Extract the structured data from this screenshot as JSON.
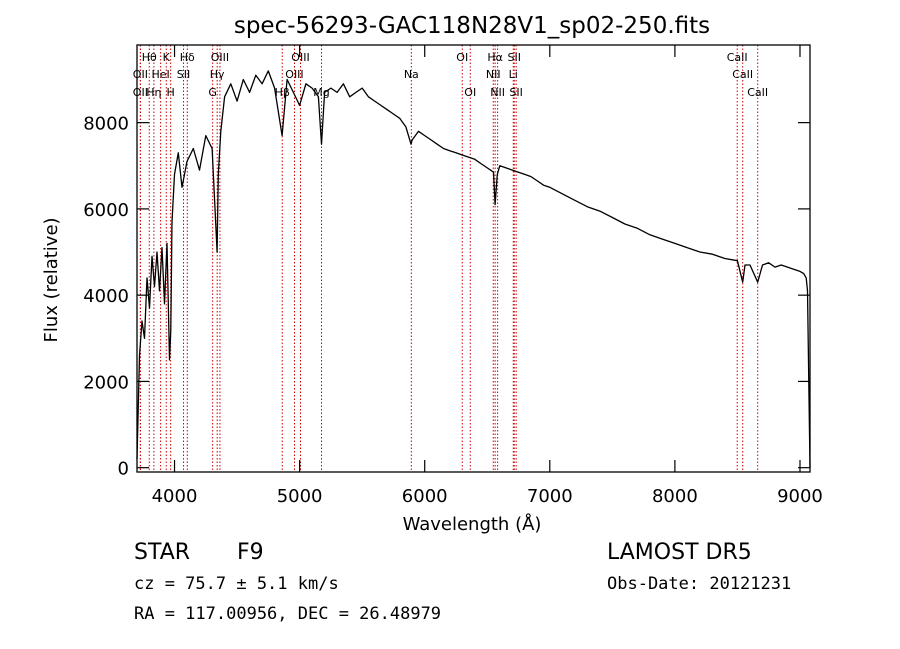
{
  "chart_data": {
    "type": "line",
    "title": "spec-56293-GAC118N28V1_sp02-250.fits",
    "xlabel": "Wavelength (Å)",
    "ylabel": "Flux (relative)",
    "xlim": [
      3700,
      9080
    ],
    "ylim": [
      -100,
      9800
    ],
    "xticks": [
      4000,
      5000,
      6000,
      7000,
      8000,
      9000
    ],
    "yticks": [
      0,
      2000,
      4000,
      6000,
      8000
    ],
    "grid": false,
    "line_color": "#000000",
    "marker_color": "#cc0000",
    "series": [
      {
        "x": [
          3700,
          3720,
          3740,
          3760,
          3780,
          3800,
          3820,
          3840,
          3860,
          3880,
          3900,
          3920,
          3940,
          3960,
          3970,
          3980,
          4000,
          4030,
          4060,
          4100,
          4150,
          4200,
          4250,
          4300,
          4340,
          4350,
          4370,
          4400,
          4450,
          4500,
          4550,
          4600,
          4650,
          4700,
          4750,
          4800,
          4860,
          4900,
          4950,
          5000,
          5050,
          5100,
          5150,
          5175,
          5200,
          5250,
          5300,
          5350,
          5400,
          5450,
          5500,
          5550,
          5600,
          5650,
          5700,
          5750,
          5800,
          5850,
          5890,
          5900,
          5950,
          6000,
          6050,
          6100,
          6150,
          6200,
          6250,
          6300,
          6350,
          6400,
          6450,
          6500,
          6550,
          6563,
          6580,
          6600,
          6650,
          6700,
          6750,
          6800,
          6850,
          6900,
          6950,
          7000,
          7100,
          7200,
          7300,
          7400,
          7500,
          7600,
          7700,
          7800,
          7900,
          8000,
          8100,
          8200,
          8300,
          8400,
          8500,
          8542,
          8560,
          8600,
          8662,
          8700,
          8750,
          8800,
          8850,
          8900,
          8950,
          9000,
          9030,
          9050,
          9060,
          9080
        ],
        "y": [
          200,
          2600,
          3400,
          3000,
          4400,
          3700,
          4900,
          4200,
          5000,
          4100,
          5100,
          3800,
          5200,
          2500,
          3200,
          5700,
          6800,
          7300,
          6500,
          7100,
          7400,
          6900,
          7700,
          7400,
          5000,
          6800,
          7800,
          8600,
          8900,
          8500,
          9000,
          8700,
          9100,
          8900,
          9200,
          8800,
          7700,
          9000,
          8700,
          8400,
          8900,
          8800,
          8600,
          7500,
          8700,
          8800,
          8700,
          8900,
          8600,
          8700,
          8800,
          8600,
          8500,
          8400,
          8300,
          8200,
          8100,
          7900,
          7500,
          7600,
          7800,
          7700,
          7600,
          7500,
          7400,
          7350,
          7300,
          7250,
          7200,
          7150,
          7050,
          6950,
          6850,
          6100,
          6800,
          7000,
          6950,
          6900,
          6850,
          6800,
          6750,
          6650,
          6550,
          6500,
          6350,
          6200,
          6050,
          5950,
          5800,
          5650,
          5550,
          5400,
          5300,
          5200,
          5100,
          5000,
          4950,
          4850,
          4800,
          4300,
          4700,
          4700,
          4300,
          4700,
          4750,
          4650,
          4700,
          4650,
          4600,
          4550,
          4500,
          4400,
          4100,
          0
        ]
      }
    ],
    "lines": [
      {
        "label": "Hθ",
        "x": 3798,
        "row": 1
      },
      {
        "label": "OII",
        "x": 3727,
        "row": 2
      },
      {
        "label": "OII",
        "x": 3727,
        "row": 3
      },
      {
        "label": "K",
        "x": 3934,
        "row": 1
      },
      {
        "label": "HeI",
        "x": 3889,
        "row": 2
      },
      {
        "label": "Hη",
        "x": 3835,
        "row": 3
      },
      {
        "label": "H",
        "x": 3969,
        "row": 3
      },
      {
        "label": "Hδ",
        "x": 4102,
        "row": 1
      },
      {
        "label": "SII",
        "x": 4072,
        "row": 2
      },
      {
        "label": "OIII",
        "x": 4363,
        "row": 1
      },
      {
        "label": "Hγ",
        "x": 4341,
        "row": 2
      },
      {
        "label": "G",
        "x": 4305,
        "row": 3
      },
      {
        "label": "Hβ",
        "x": 4861,
        "row": 3
      },
      {
        "label": "OIII",
        "x": 4959,
        "row": 2
      },
      {
        "label": "OIII",
        "x": 5007,
        "row": 1
      },
      {
        "label": "Mg",
        "x": 5175,
        "row": 3
      },
      {
        "label": "Na",
        "x": 5893,
        "row": 2
      },
      {
        "label": "OI",
        "x": 6300,
        "row": 1
      },
      {
        "label": "OI",
        "x": 6364,
        "row": 3
      },
      {
        "label": "Hα",
        "x": 6563,
        "row": 1
      },
      {
        "label": "NII",
        "x": 6548,
        "row": 2
      },
      {
        "label": "NII",
        "x": 6583,
        "row": 3
      },
      {
        "label": "SII",
        "x": 6716,
        "row": 1
      },
      {
        "label": "Li",
        "x": 6708,
        "row": 2
      },
      {
        "label": "SII",
        "x": 6731,
        "row": 3
      },
      {
        "label": "CaII",
        "x": 8498,
        "row": 1
      },
      {
        "label": "CaII",
        "x": 8542,
        "row": 2
      },
      {
        "label": "CaII",
        "x": 8662,
        "row": 3
      }
    ]
  },
  "info": {
    "class_label": "STAR",
    "subclass": "F9",
    "survey": "LAMOST DR5",
    "cz": "cz = 75.7 ± 5.1 km/s",
    "obs_date": "Obs-Date: 20121231",
    "coords": "RA = 117.00956, DEC =  26.48979"
  }
}
